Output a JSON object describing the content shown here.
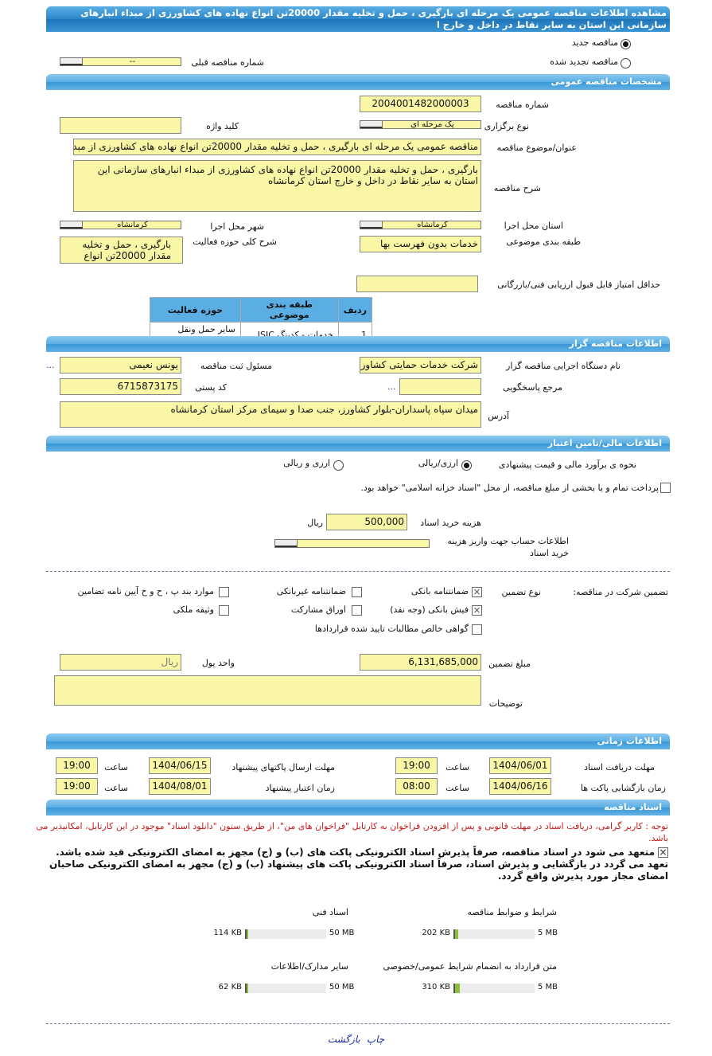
{
  "title": "مشاهده اطلاعات مناقصه عمومی یک مرحله ای بارگیری ، حمل و تخلیه مقدار 20000تن انواع نهاده های کشاورزی از مبداء انبارهای سازمانی این استان به سایر نقاط در داخل و خارج ا",
  "tender_type": {
    "new": "مناقصه جدید",
    "renewed": "مناقصه تجدید شده",
    "selected": "new",
    "prev_label": "شماره مناقصه قبلی",
    "prev_value": "--"
  },
  "sections": {
    "general": "مشخصات مناقصه عمومی",
    "organizer": "اطلاعات مناقصه گزار",
    "financial": "اطلاعات مالی/تامین اعتبار",
    "timing": "اطلاعات زمانی",
    "docs": "اسناد مناقصه"
  },
  "general": {
    "number_label": "شماره مناقصه",
    "number": "2004001482000003",
    "holding_label": "نوع برگزاری",
    "holding": "یک مرحله ای",
    "keyword_label": "کلید واژه",
    "keyword": "",
    "subject_label": "عنوان/موضوع مناقصه",
    "subject": "مناقصه عمومی یک مرحله ای بارگیری ، حمل و تخلیه مقدار 20000تن انواع نهاده های کشاورزی از مبدا",
    "desc_label": "شرح مناقصه",
    "desc": "بارگیری ، حمل و تخلیه مقدار 20000تن انواع نهاده های کشاورزی از مبداء انبارهای سازمانی این استان به سایر نقاط در داخل و خارج  استان کرمانشاه",
    "province_label": "استان محل اجرا",
    "province": "کرمانشاه",
    "city_label": "شهر محل اجرا",
    "city": "کرمانشاه",
    "category_label": "طبقه بندی موضوعی",
    "category": "خدمات بدون فهرست بها",
    "activity_label": "شرح کلی حوزه فعالیت",
    "activity": "بارگیری ، حمل و تخلیه مقدار 20000تن انواع نهاده",
    "minscore_label": "حداقل امتیاز قابل قبول ارزیابی فنی/بازرگانی",
    "minscore": "",
    "table": {
      "headers": [
        "ردیف",
        "طبقه بندی موضوعی",
        "حوزه فعالیت"
      ],
      "rows": [
        [
          "1",
          "خدمات - کدینگ ISIC",
          "سایر حمل ونقل زمینی"
        ]
      ]
    }
  },
  "organizer": {
    "org_label": "نام دستگاه اجرایی مناقصه گزار",
    "org": "شرکت خدمات حمایتی کشاورزی",
    "resp_label": "مسئول ثبت مناقصه",
    "resp": "یونس نعیمی",
    "ref_label": "مرجع پاسخگویی",
    "ref": "",
    "postal_label": "کد پستی",
    "postal": "6715873175",
    "address_label": "آدرس",
    "address": "میدان سپاه پاسداران-بلوار کشاورز، جنب صدا و سیمای مرکز استان کرمانشاه",
    "more": "..."
  },
  "financial": {
    "estimate_label": "نحوه ی برآورد مالی و قیمت پیشنهادی",
    "opt1": "ارزی/ریالی",
    "opt2": "ارزی و ریالی",
    "selected": "opt1",
    "treasury": "پرداخت تمام و یا بخشی از مبلغ مناقصه، از محل \"اسناد خزانه اسلامی\" خواهد بود.",
    "treasury_checked": false,
    "doc_fee_label": "هزینه خرید اسناد",
    "doc_fee": "500,000",
    "doc_fee_unit": "ریال",
    "account_label": "اطلاعات حساب جهت واریز هزینه خرید اسناد"
  },
  "guarantee": {
    "label": "تضمین شرکت در مناقصه:",
    "type_label": "نوع تضمین",
    "options": [
      {
        "label": "ضمانتنامه بانکی",
        "checked": true
      },
      {
        "label": "ضمانتنامه غیربانکی",
        "checked": false
      },
      {
        "label": "موارد بند پ ، ح و خ آیین نامه تضامین",
        "checked": false
      },
      {
        "label": "فیش بانکی (وجه نقد)",
        "checked": true
      },
      {
        "label": "اوراق مشارکت",
        "checked": false
      },
      {
        "label": "وثیقه ملکی",
        "checked": false
      },
      {
        "label": "گواهی خالص مطالبات تایید شده قراردادها",
        "checked": false
      }
    ],
    "amount_label": "مبلغ تضمین",
    "amount": "6,131,685,000",
    "currency_label": "واحد پول",
    "currency": "ریال",
    "notes_label": "توضیحات",
    "notes": ""
  },
  "timing": {
    "doc_receive_label": "مهلت دریافت اسناد",
    "doc_receive": "1404/06/01",
    "doc_receive_time": "19:00",
    "submit_label": "مهلت ارسال پاکتهای پیشنهاد",
    "submit": "1404/06/15",
    "submit_time": "19:00",
    "open_label": "زمان بازگشایی پاکت ها",
    "open": "1404/06/16",
    "open_time": "08:00",
    "validity_label": "زمان اعتبار پیشنهاد",
    "validity": "1404/08/01",
    "validity_time": "19:00",
    "time_label": "ساعت"
  },
  "docs": {
    "notice": "توجه : کاربر گرامی، دریافت اسناد در مهلت قانونی و پس از افزودن فراخوان به کارتابل \"فراخوان های من\"، از طریق ستون \"دانلود اسناد\" موجود در این کارتابل، امکانپذیر می باشد.",
    "commit1": "متعهد می شود در اسناد مناقصه، صرفاً پذیرش اسناد الکترونیکی پاکت های (ب) و (ج) مجهز به امضای الکترونیکی قید شده باشد.",
    "commit2": "تعهد می گردد در بازگشایی و پذیرش اسناد، صرفاً اسناد الکترونیکی پاکت های پیشنهاد (ب) و (ج) مجهز به امضای الکترونیکی صاحبان امضای مجاز مورد پذیرش واقع گردد.",
    "files": [
      {
        "name": "شرایط و ضوابط مناقصه",
        "size": "202 KB",
        "max": "5 MB",
        "fill_percent": 4
      },
      {
        "name": "اسناد فنی",
        "size": "114 KB",
        "max": "50 MB",
        "fill_percent": 0.2
      },
      {
        "name": "متن قرارداد به انضمام شرایط عمومی/خصوصی",
        "size": "310 KB",
        "max": "5 MB",
        "fill_percent": 6
      },
      {
        "name": "سایر مدارک/اطلاعات",
        "size": "62 KB",
        "max": "50 MB",
        "fill_percent": 0.1
      }
    ]
  },
  "footer": {
    "print": "چاپ",
    "back": "بازگشت"
  }
}
